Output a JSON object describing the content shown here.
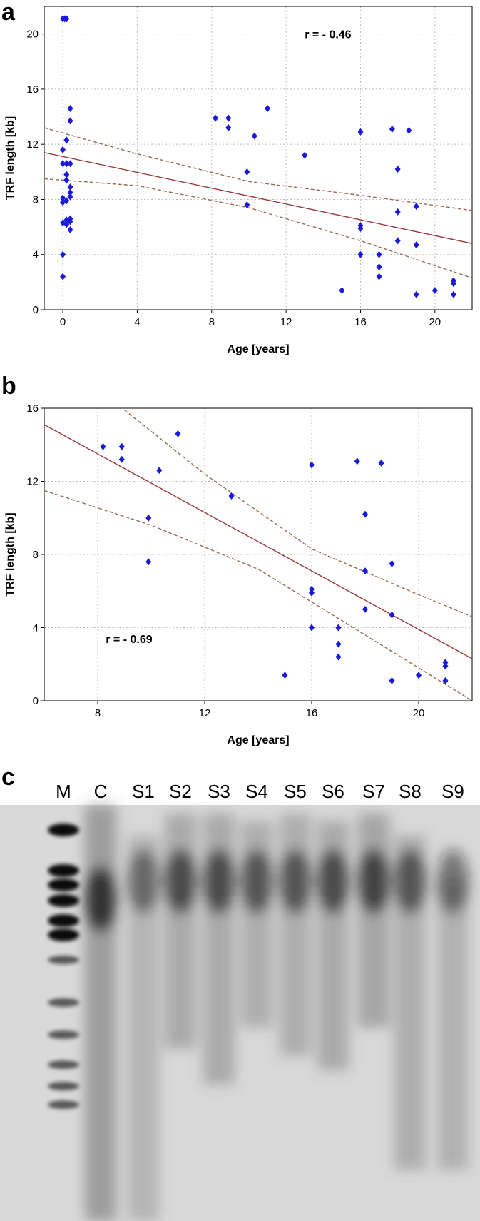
{
  "chart_data": [
    {
      "type": "scatter",
      "panel_label": "a",
      "x_label": "Age [years]",
      "y_label": "TRF length [kb]",
      "annotation": "r = - 0.46",
      "annotation_at": [
        13,
        20
      ],
      "xlim": [
        -1,
        22
      ],
      "ylim": [
        0,
        22
      ],
      "xticks": [
        0,
        4,
        8,
        12,
        16,
        20
      ],
      "yticks": [
        0,
        4,
        8,
        12,
        16,
        20
      ],
      "grid": true,
      "points": {
        "color": "#1a1adb",
        "x": [
          0,
          0.1,
          0.2,
          0,
          0,
          0,
          0,
          0,
          0,
          0,
          0.2,
          0.2,
          0.2,
          0.2,
          0.2,
          0.2,
          0.2,
          0.4,
          0.4,
          0.4,
          0.4,
          0.4,
          0.4,
          0.4,
          0.4,
          0.4,
          8.2,
          8.9,
          8.9,
          9.9,
          9.9,
          10.3,
          11,
          13,
          15,
          16,
          16,
          16,
          16,
          17,
          17,
          17,
          17.7,
          18,
          18,
          18,
          18.6,
          19,
          19,
          19,
          20,
          21,
          21,
          21
        ],
        "y": [
          21.1,
          21.1,
          21.1,
          11.6,
          10.6,
          8.1,
          7.8,
          6.3,
          4.0,
          2.4,
          12.3,
          10.6,
          9.8,
          9.4,
          7.9,
          6.5,
          6.2,
          14.6,
          13.7,
          10.6,
          8.9,
          8.5,
          8.2,
          6.6,
          6.4,
          5.8,
          13.9,
          13.9,
          13.2,
          10.0,
          7.6,
          12.6,
          14.6,
          11.2,
          1.4,
          12.9,
          6.1,
          5.9,
          4.0,
          4.0,
          3.1,
          2.4,
          13.1,
          10.2,
          7.1,
          5.0,
          13.0,
          7.5,
          4.7,
          1.1,
          1.4,
          2.1,
          1.9,
          1.1
        ]
      },
      "fit": {
        "color": "#9b3a3a",
        "x": [
          -1,
          22
        ],
        "y": [
          11.4,
          4.8
        ]
      },
      "bands": {
        "color": "#9b6a50",
        "lines": [
          {
            "x": [
              -1,
              4,
              10,
              16,
              22
            ],
            "y": [
              13.2,
              11.3,
              9.3,
              8.3,
              7.2
            ]
          },
          {
            "x": [
              -1,
              4,
              10,
              16,
              22
            ],
            "y": [
              9.5,
              9.0,
              7.4,
              5.0,
              2.3
            ]
          }
        ]
      }
    },
    {
      "type": "scatter",
      "panel_label": "b",
      "x_label": "Age [years]",
      "y_label": "TRF length [kb]",
      "annotation": "r = - 0.69",
      "annotation_at": [
        8.3,
        3.4
      ],
      "xlim": [
        6,
        22
      ],
      "ylim": [
        0,
        16
      ],
      "xticks": [
        8,
        12,
        16,
        20
      ],
      "yticks": [
        0,
        4,
        8,
        12,
        16
      ],
      "grid": true,
      "points": {
        "color": "#1a1adb",
        "x": [
          8.2,
          8.9,
          8.9,
          9.9,
          9.9,
          10.3,
          11,
          13,
          15,
          16,
          16,
          16,
          16,
          17,
          17,
          17,
          17.7,
          18,
          18,
          18,
          18.6,
          19,
          19,
          19,
          20,
          21,
          21,
          21
        ],
        "y": [
          13.9,
          13.9,
          13.2,
          10.0,
          7.6,
          12.6,
          14.6,
          11.2,
          1.4,
          12.9,
          6.1,
          5.9,
          4.0,
          4.0,
          3.1,
          2.4,
          13.1,
          10.2,
          7.1,
          5.0,
          13.0,
          7.5,
          4.7,
          1.1,
          1.4,
          2.1,
          1.9,
          1.1
        ]
      },
      "fit": {
        "color": "#9b3a3a",
        "x": [
          6,
          22
        ],
        "y": [
          15.1,
          2.3
        ]
      },
      "bands": {
        "color": "#9b6a50",
        "lines": [
          {
            "x": [
              9,
              12,
              16,
              20,
              22
            ],
            "y": [
              15.9,
              12.4,
              8.3,
              5.8,
              4.6
            ]
          },
          {
            "x": [
              6,
              10,
              14,
              18,
              22
            ],
            "y": [
              11.5,
              9.6,
              7.2,
              3.6,
              0
            ]
          }
        ]
      }
    }
  ],
  "gel": {
    "panel_label": "c",
    "lanes": [
      "M",
      "C",
      "S1",
      "S2",
      "S3",
      "S4",
      "S5",
      "S6",
      "S7",
      "S8",
      "S9"
    ]
  }
}
